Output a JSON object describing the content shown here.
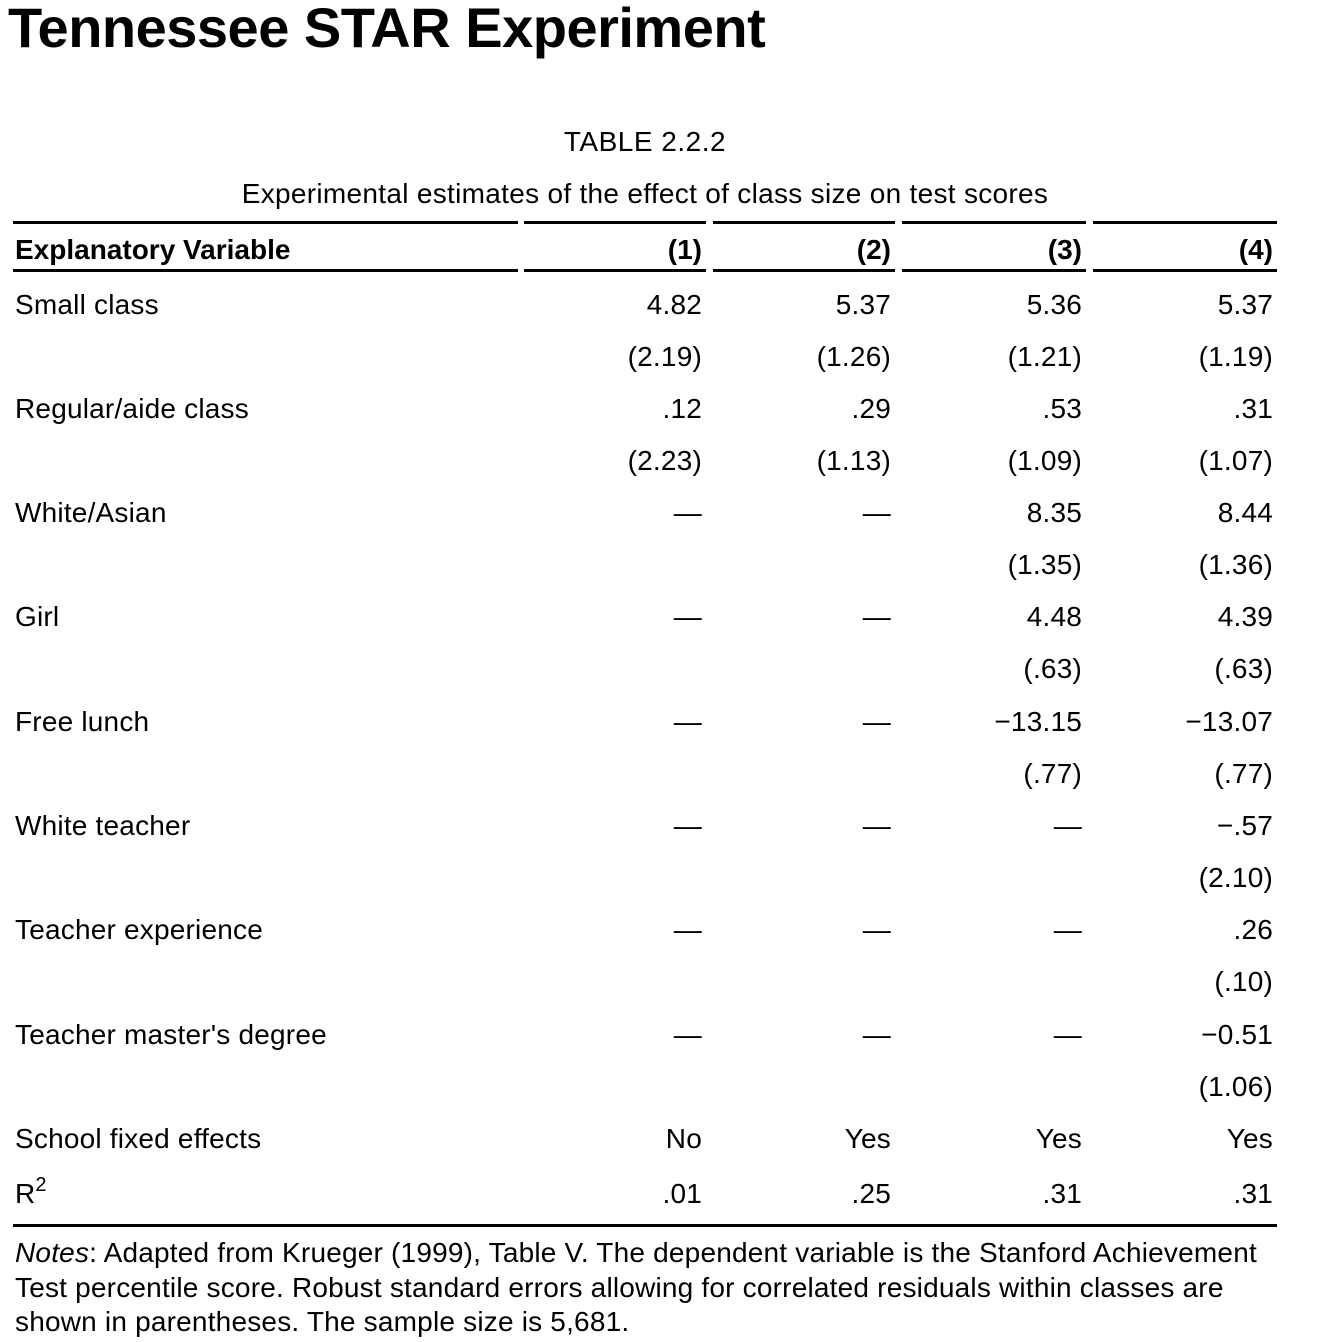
{
  "page": {
    "title": "Tennessee STAR Experiment"
  },
  "table": {
    "number": "TABLE 2.2.2",
    "caption": "Experimental estimates of the effect of class size on test scores",
    "columns": [
      "Explanatory Variable",
      "(1)",
      "(2)",
      "(3)",
      "(4)"
    ],
    "rows": [
      {
        "label": "Small class",
        "values": [
          "4.82",
          "5.37",
          "5.36",
          "5.37"
        ]
      },
      {
        "label": "",
        "values": [
          "(2.19)",
          "(1.26)",
          "(1.21)",
          "(1.19)"
        ]
      },
      {
        "label": "Regular/aide class",
        "values": [
          ".12",
          ".29",
          ".53",
          ".31"
        ]
      },
      {
        "label": "",
        "values": [
          "(2.23)",
          "(1.13)",
          "(1.09)",
          "(1.07)"
        ]
      },
      {
        "label": "White/Asian",
        "values": [
          "—",
          "—",
          "8.35",
          "8.44"
        ]
      },
      {
        "label": "",
        "values": [
          "",
          "",
          "(1.35)",
          "(1.36)"
        ]
      },
      {
        "label": "Girl",
        "values": [
          "—",
          "—",
          "4.48",
          "4.39"
        ]
      },
      {
        "label": "",
        "values": [
          "",
          "",
          "(.63)",
          "(.63)"
        ]
      },
      {
        "label": "Free lunch",
        "values": [
          "—",
          "—",
          "−13.15",
          "−13.07"
        ]
      },
      {
        "label": "",
        "values": [
          "",
          "",
          "(.77)",
          "(.77)"
        ]
      },
      {
        "label": "White teacher",
        "values": [
          "—",
          "—",
          "—",
          "−.57"
        ]
      },
      {
        "label": "",
        "values": [
          "",
          "",
          "",
          "(2.10)"
        ]
      },
      {
        "label": "Teacher experience",
        "values": [
          "—",
          "—",
          "—",
          ".26"
        ]
      },
      {
        "label": "",
        "values": [
          "",
          "",
          "",
          "(.10)"
        ]
      },
      {
        "label": "Teacher master's degree",
        "values": [
          "—",
          "—",
          "—",
          "−0.51"
        ]
      },
      {
        "label": "",
        "values": [
          "",
          "",
          "",
          "(1.06)"
        ]
      },
      {
        "label": "School fixed effects",
        "values": [
          "No",
          "Yes",
          "Yes",
          "Yes"
        ]
      }
    ],
    "r2": {
      "label_base": "R",
      "label_sup": "2",
      "values": [
        ".01",
        ".25",
        ".31",
        ".31"
      ]
    },
    "notes": {
      "label": "Notes",
      "text": ": Adapted from Krueger (1999), Table V. The dependent variable is the Stanford Achievement Test percentile score. Robust standard errors allowing for correlated residuals within classes are shown in parentheses. The sample size is 5,681."
    }
  }
}
